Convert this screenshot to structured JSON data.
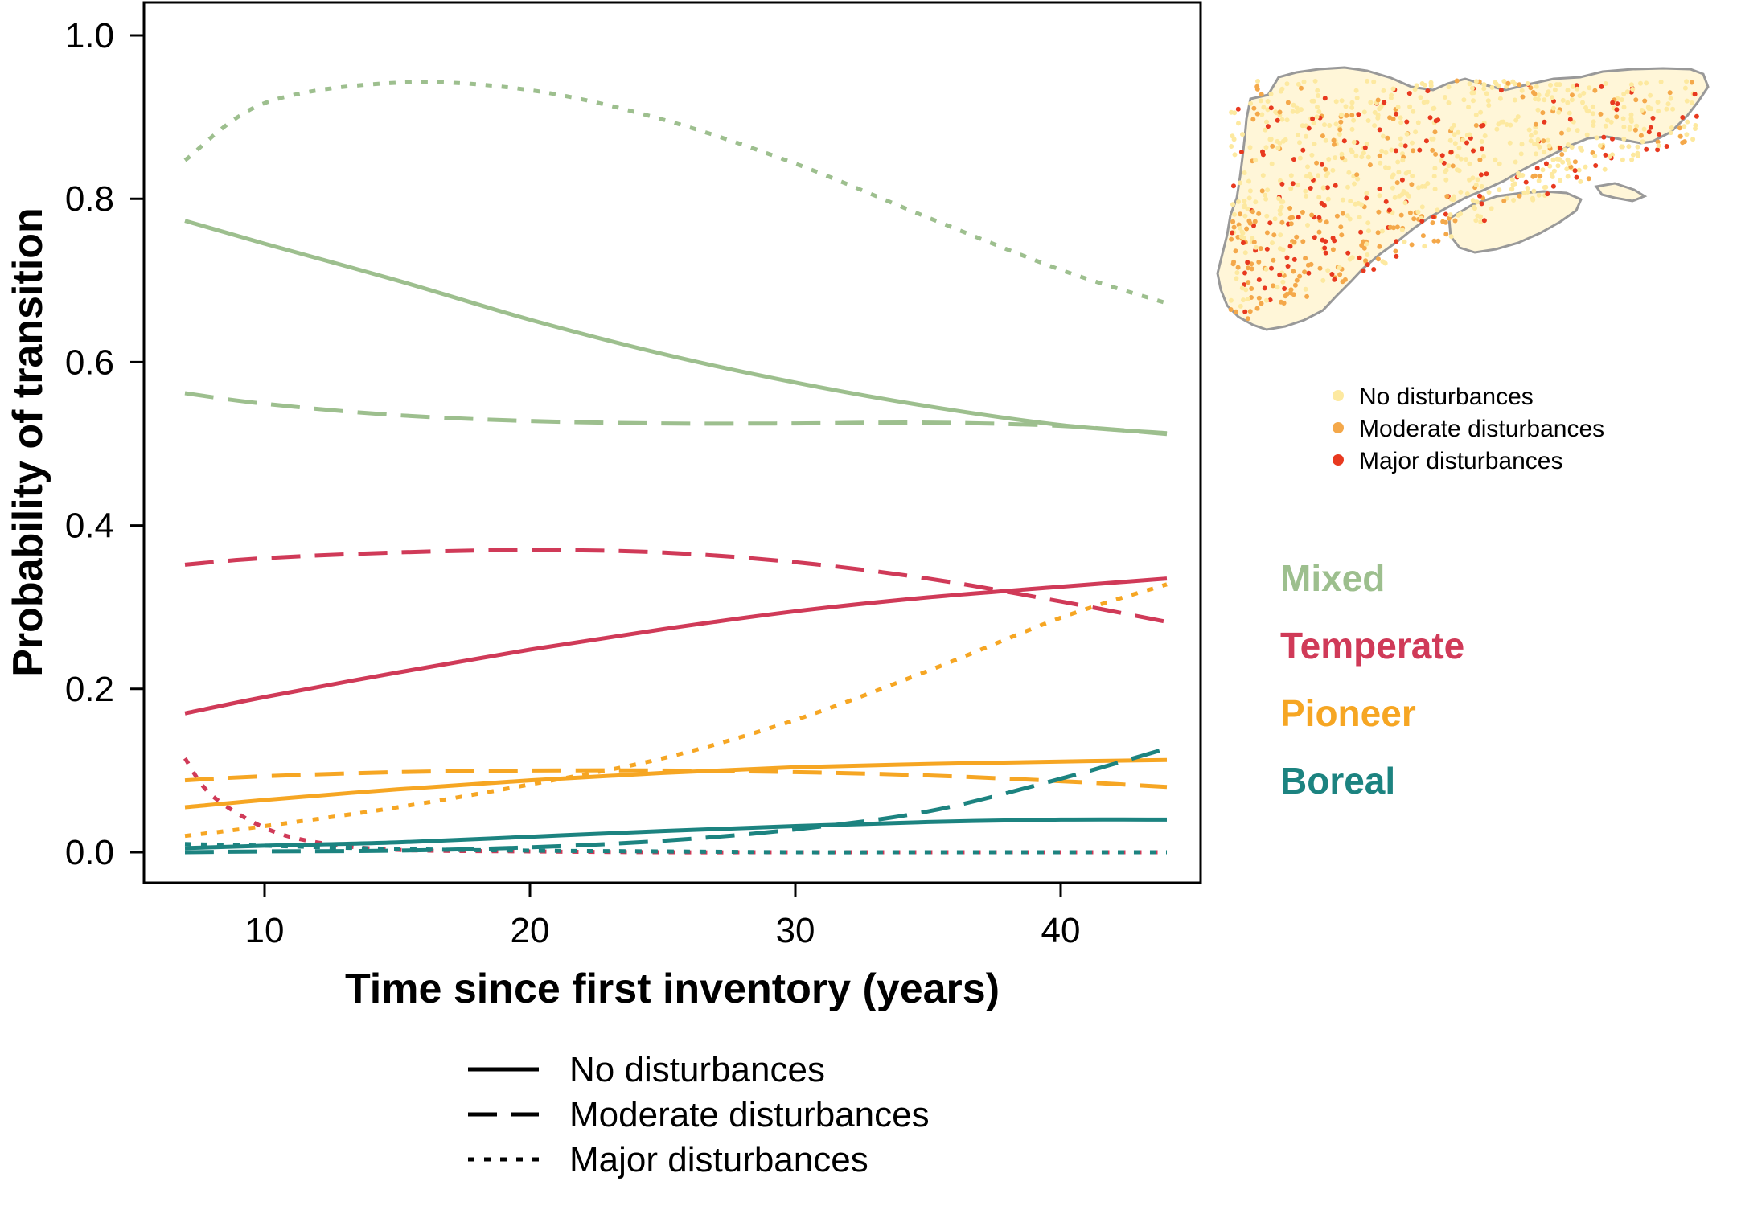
{
  "chart_data": {
    "type": "line",
    "xlabel": "Time since first inventory (years)",
    "ylabel": "Probability of transition",
    "xlim": [
      5,
      45
    ],
    "ylim": [
      -0.04,
      1.04
    ],
    "xticks": [
      10,
      20,
      30,
      40
    ],
    "yticks": [
      "0.0",
      "0.2",
      "0.4",
      "0.6",
      "0.8",
      "1.0"
    ],
    "grid": false,
    "colors": {
      "Mixed": "#9dbf8e",
      "Temperate": "#d03a58",
      "Pioneer": "#f6a623",
      "Boreal": "#1c8380"
    },
    "groups": [
      "Mixed",
      "Temperate",
      "Pioneer",
      "Boreal"
    ],
    "linetype_legend": [
      {
        "label": "No disturbances",
        "style": "solid"
      },
      {
        "label": "Moderate disturbances",
        "style": "dashed"
      },
      {
        "label": "Major disturbances",
        "style": "dotted"
      }
    ],
    "series": [
      {
        "group": "Mixed",
        "style": "solid",
        "x": [
          7,
          10,
          15,
          20,
          25,
          30,
          35,
          40,
          44
        ],
        "values": [
          0.773,
          0.745,
          0.7,
          0.652,
          0.61,
          0.575,
          0.546,
          0.523,
          0.513
        ]
      },
      {
        "group": "Mixed",
        "style": "dashed",
        "x": [
          7,
          10,
          15,
          20,
          25,
          30,
          35,
          40,
          44
        ],
        "values": [
          0.562,
          0.549,
          0.535,
          0.528,
          0.525,
          0.525,
          0.526,
          0.522,
          0.512
        ]
      },
      {
        "group": "Mixed",
        "style": "dotted",
        "x": [
          7,
          10,
          15,
          20,
          25,
          30,
          35,
          40,
          44
        ],
        "values": [
          0.847,
          0.917,
          0.942,
          0.933,
          0.897,
          0.843,
          0.777,
          0.713,
          0.672
        ]
      },
      {
        "group": "Temperate",
        "style": "solid",
        "x": [
          7,
          10,
          15,
          20,
          25,
          30,
          35,
          40,
          44
        ],
        "values": [
          0.17,
          0.19,
          0.22,
          0.248,
          0.273,
          0.295,
          0.312,
          0.325,
          0.335
        ]
      },
      {
        "group": "Temperate",
        "style": "dashed",
        "x": [
          7,
          10,
          15,
          20,
          25,
          30,
          35,
          40,
          44
        ],
        "values": [
          0.352,
          0.36,
          0.367,
          0.37,
          0.367,
          0.355,
          0.335,
          0.307,
          0.282
        ]
      },
      {
        "group": "Temperate",
        "style": "dotted",
        "x": [
          7,
          8,
          10,
          12,
          15,
          20,
          25,
          30,
          35,
          40,
          44
        ],
        "values": [
          0.115,
          0.07,
          0.03,
          0.012,
          0.003,
          0.001,
          0.0,
          0.0,
          0.0,
          0.0,
          0.0
        ]
      },
      {
        "group": "Pioneer",
        "style": "solid",
        "x": [
          7,
          10,
          15,
          20,
          25,
          30,
          35,
          40,
          44
        ],
        "values": [
          0.055,
          0.064,
          0.077,
          0.088,
          0.097,
          0.104,
          0.108,
          0.111,
          0.113
        ]
      },
      {
        "group": "Pioneer",
        "style": "dashed",
        "x": [
          7,
          10,
          15,
          20,
          25,
          30,
          35,
          40,
          44
        ],
        "values": [
          0.088,
          0.093,
          0.098,
          0.1,
          0.1,
          0.098,
          0.094,
          0.087,
          0.08
        ]
      },
      {
        "group": "Pioneer",
        "style": "dotted",
        "x": [
          7,
          10,
          15,
          20,
          25,
          30,
          35,
          40,
          44
        ],
        "values": [
          0.02,
          0.032,
          0.055,
          0.083,
          0.115,
          0.162,
          0.222,
          0.287,
          0.328
        ]
      },
      {
        "group": "Boreal",
        "style": "solid",
        "x": [
          7,
          10,
          15,
          20,
          25,
          30,
          35,
          40,
          44
        ],
        "values": [
          0.005,
          0.008,
          0.012,
          0.019,
          0.026,
          0.032,
          0.037,
          0.04,
          0.04
        ]
      },
      {
        "group": "Boreal",
        "style": "dashed",
        "x": [
          7,
          10,
          15,
          20,
          25,
          30,
          35,
          40,
          44
        ],
        "values": [
          0.0,
          0.001,
          0.002,
          0.006,
          0.014,
          0.028,
          0.05,
          0.09,
          0.127
        ]
      },
      {
        "group": "Boreal",
        "style": "dotted",
        "x": [
          7,
          10,
          15,
          20,
          25,
          30,
          35,
          40,
          44
        ],
        "values": [
          0.01,
          0.008,
          0.004,
          0.002,
          0.001,
          0.0,
          0.0,
          0.0,
          0.0
        ]
      }
    ]
  },
  "map": {
    "legend": [
      {
        "label": "No disturbances",
        "color": "#fde9a0"
      },
      {
        "label": "Moderate disturbances",
        "color": "#f4a84a"
      },
      {
        "label": "Major disturbances",
        "color": "#e8391f"
      }
    ]
  }
}
